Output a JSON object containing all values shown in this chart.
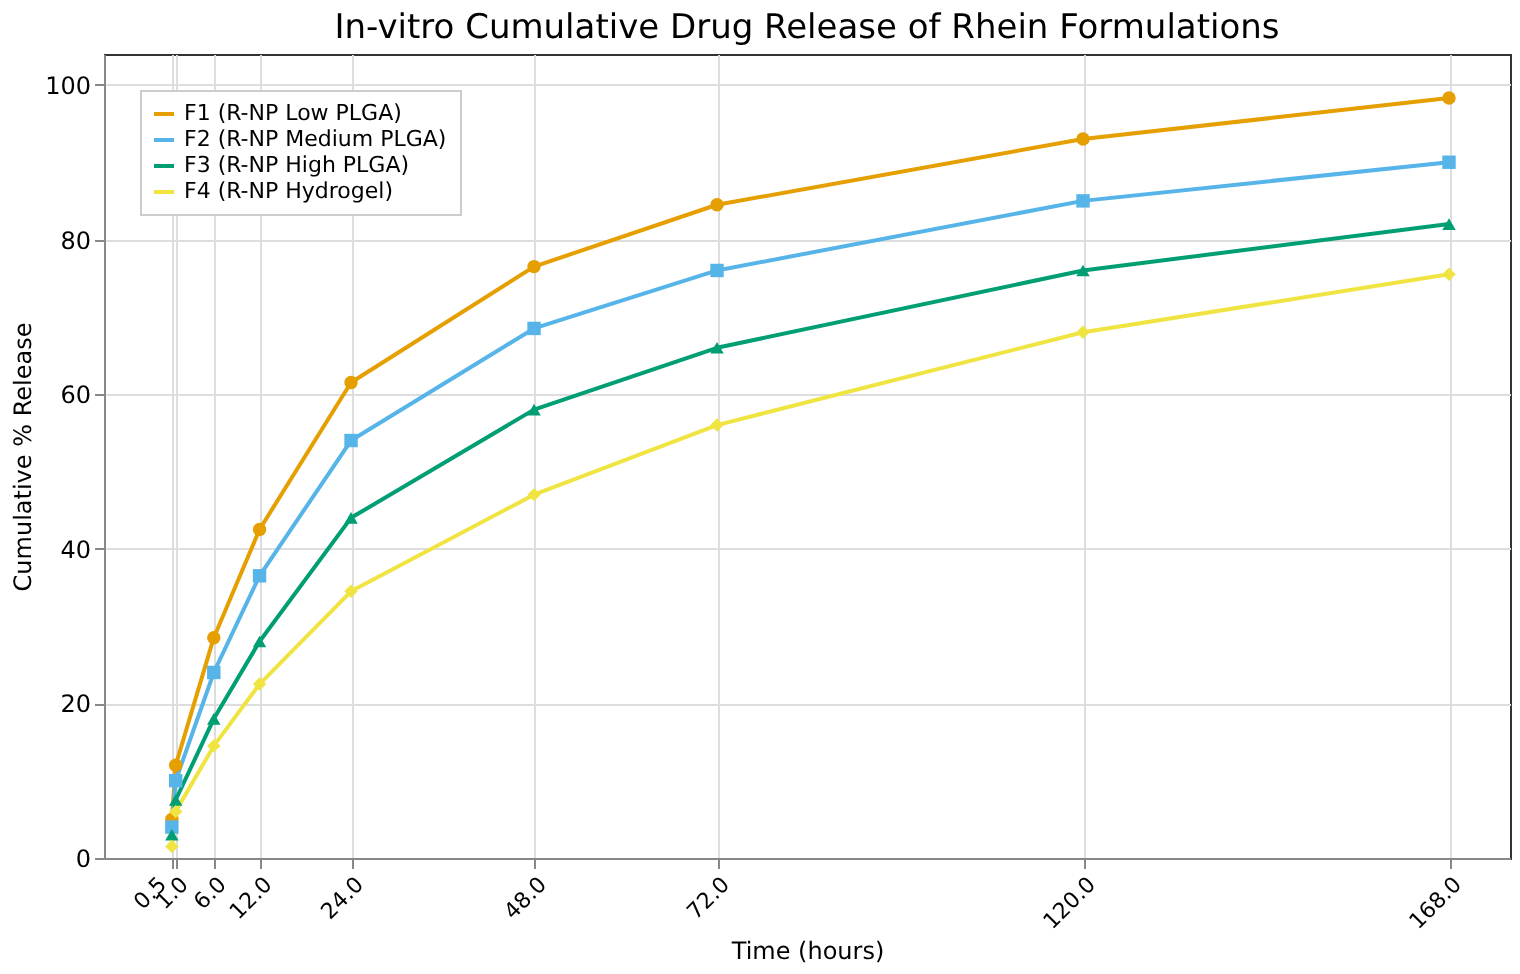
{
  "chart_data": {
    "type": "line",
    "title": "In-vitro Cumulative Drug Release of Rhein Formulations",
    "xlabel": "Time (hours)",
    "ylabel": "Cumulative % Release",
    "x": [
      0.5,
      1,
      6,
      12,
      24,
      48,
      72,
      120,
      168
    ],
    "xlim": [
      -8.4,
      176
    ],
    "xticks": [
      0.5,
      {
        "value": 1,
        "label": "1.0"
      },
      {
        "value": 6,
        "label": "6.0"
      },
      {
        "value": 12,
        "label": "12.0"
      },
      {
        "value": 24,
        "label": "24.0"
      },
      {
        "value": 48,
        "label": "48.0"
      },
      {
        "value": 72,
        "label": "72.0"
      },
      {
        "value": 120,
        "label": "120.0"
      },
      {
        "value": 168,
        "label": "168.0"
      }
    ],
    "ylim": [
      0,
      104
    ],
    "yticks": [
      0,
      20,
      40,
      60,
      80,
      100
    ],
    "grid": true,
    "legend": "top left",
    "line_style": "solid",
    "series": [
      {
        "name": "F1 (R-NP Low PLGA)",
        "color": "#e69f00",
        "marker": "circle",
        "values": [
          5,
          12,
          28.5,
          42.5,
          61.5,
          76.5,
          84.5,
          93,
          98.3
        ]
      },
      {
        "name": "F2 (R-NP Medium PLGA)",
        "color": "#56b4e9",
        "marker": "square",
        "values": [
          4,
          10,
          24,
          36.5,
          54,
          68.5,
          76,
          85,
          90
        ]
      },
      {
        "name": "F3 (R-NP High PLGA)",
        "color": "#009e73",
        "marker": "triangle",
        "values": [
          3,
          7.5,
          18,
          28,
          44,
          58,
          66,
          76,
          82
        ]
      },
      {
        "name": "F4 (R-NP Hydrogel)",
        "color": "#f0e442",
        "marker": "diamond",
        "values": [
          1.5,
          6,
          14.5,
          22.5,
          34.5,
          47,
          56,
          68,
          75.5
        ]
      }
    ]
  }
}
